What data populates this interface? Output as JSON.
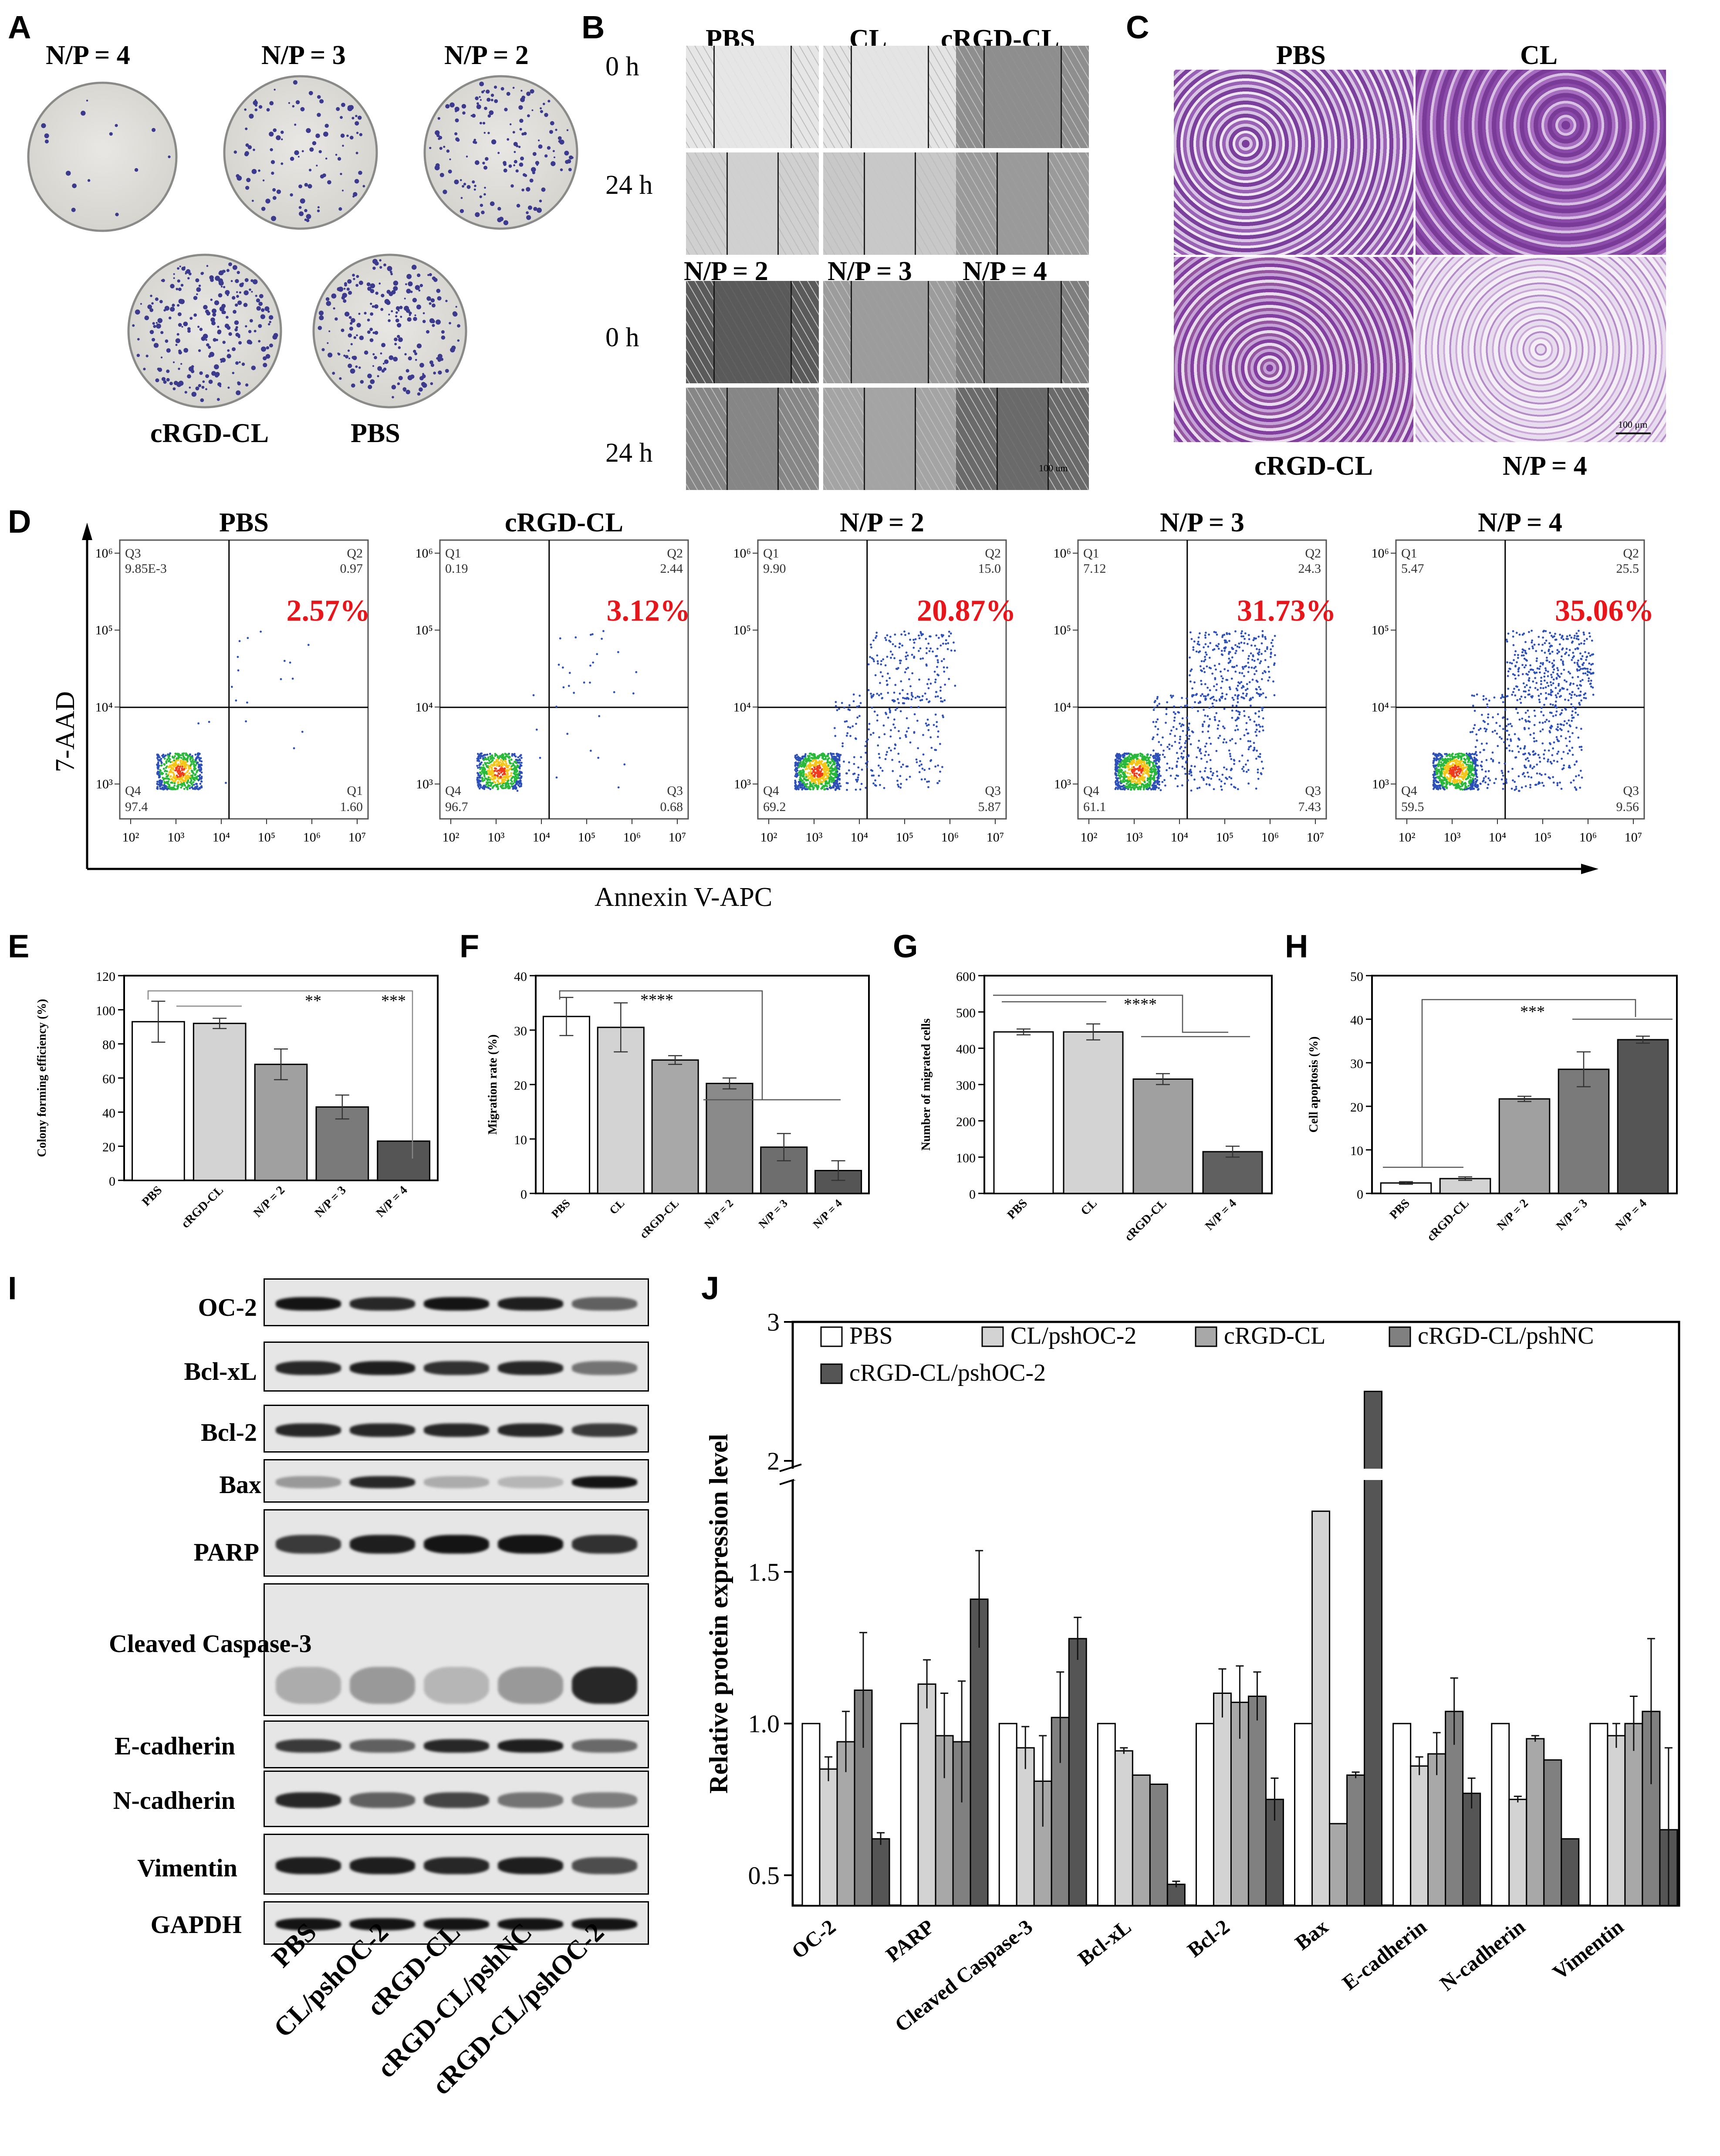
{
  "panel_labels": {
    "A": "A",
    "B": "B",
    "C": "C",
    "D": "D",
    "E": "E",
    "F": "F",
    "G": "G",
    "H": "H",
    "I": "I",
    "J": "J"
  },
  "panelA": {
    "top_labels": [
      "N/P = 4",
      "N/P = 3",
      "N/P = 2"
    ],
    "bottom_labels": [
      "cRGD-CL",
      "PBS"
    ]
  },
  "panelB": {
    "top_labels": [
      "PBS",
      "CL",
      "cRGD-CL"
    ],
    "bottom_labels": [
      "N/P = 2",
      "N/P = 3",
      "N/P = 4"
    ],
    "time_labels": [
      "0 h",
      "24 h",
      "0 h",
      "24 h"
    ],
    "scale": "100 um"
  },
  "panelC": {
    "top_labels": [
      "PBS",
      "CL"
    ],
    "bottom_labels": [
      "cRGD-CL",
      "N/P = 4"
    ],
    "scale": "100 μm"
  },
  "panelD": {
    "ylabel": "7-AAD",
    "xlabel": "Annexin V-APC",
    "xticks": [
      "10²",
      "10³",
      "10⁴",
      "10⁵",
      "10⁶",
      "10⁷"
    ],
    "yticks": [
      "10³",
      "10⁴",
      "10⁵",
      "10⁶"
    ],
    "plots": [
      {
        "title": "PBS",
        "tl": "Q3",
        "tl_v": "9.85E-3",
        "tr": "Q2",
        "tr_v": "0.97",
        "bl": "Q4",
        "bl_v": "97.4",
        "br": "Q1",
        "br_v": "1.60",
        "pct": "2.57%"
      },
      {
        "title": "cRGD-CL",
        "tl": "Q1",
        "tl_v": "0.19",
        "tr": "Q2",
        "tr_v": "2.44",
        "bl": "Q4",
        "bl_v": "96.7",
        "br": "Q3",
        "br_v": "0.68",
        "pct": "3.12%"
      },
      {
        "title": "N/P = 2",
        "tl": "Q1",
        "tl_v": "9.90",
        "tr": "Q2",
        "tr_v": "15.0",
        "bl": "Q4",
        "bl_v": "69.2",
        "br": "Q3",
        "br_v": "5.87",
        "pct": "20.87%"
      },
      {
        "title": "N/P = 3",
        "tl": "Q1",
        "tl_v": "7.12",
        "tr": "Q2",
        "tr_v": "24.3",
        "bl": "Q4",
        "bl_v": "61.1",
        "br": "Q3",
        "br_v": "7.43",
        "pct": "31.73%"
      },
      {
        "title": "N/P = 4",
        "tl": "Q1",
        "tl_v": "5.47",
        "tr": "Q2",
        "tr_v": "25.5",
        "bl": "Q4",
        "bl_v": "59.5",
        "br": "Q3",
        "br_v": "9.56",
        "pct": "35.06%"
      }
    ],
    "pct_color": "#e8161b"
  },
  "panelI": {
    "proteins": [
      "OC-2",
      "Bcl-xL",
      "Bcl-2",
      "Bax",
      "PARP",
      "Cleaved Caspase-3",
      "E-cadherin",
      "N-cadherin",
      "Vimentin",
      "GAPDH"
    ],
    "lanes": [
      "PBS",
      "CL/pshOC-2",
      "cRGD-CL",
      "cRGD-CL/pshNC",
      "cRGD-CL/pshOC-2"
    ]
  },
  "chart_data": [
    {
      "id": "E",
      "type": "bar",
      "ylabel": "Colony forming efficiency (%)",
      "categories": [
        "PBS",
        "cRGD-CL",
        "N/P = 2",
        "N/P = 3",
        "N/P = 4"
      ],
      "values": [
        93,
        92,
        68,
        43,
        23
      ],
      "errors": [
        12,
        3,
        9,
        7,
        0
      ],
      "ylim": [
        0,
        120
      ],
      "yticks": [
        0,
        20,
        40,
        60,
        80,
        100,
        120
      ],
      "colors": [
        "#ffffff",
        "#d3d3d3",
        "#a0a0a0",
        "#7a7a7a",
        "#555555"
      ],
      "sig": [
        "**",
        "***"
      ]
    },
    {
      "id": "F",
      "type": "bar",
      "ylabel": "Migration rate (%)",
      "categories": [
        "PBS",
        "CL",
        "cRGD-CL",
        "N/P = 2",
        "N/P = 3",
        "N/P = 4"
      ],
      "values": [
        32.5,
        30.5,
        24.5,
        20.2,
        8.5,
        4.2
      ],
      "errors": [
        3.5,
        4.5,
        0.8,
        1.0,
        2.5,
        1.8
      ],
      "ylim": [
        0,
        40
      ],
      "yticks": [
        0,
        10,
        20,
        30,
        40
      ],
      "colors": [
        "#ffffff",
        "#d3d3d3",
        "#a8a8a8",
        "#8a8a8a",
        "#6e6e6e",
        "#555555"
      ],
      "sig": [
        "****"
      ]
    },
    {
      "id": "G",
      "type": "bar",
      "ylabel": "Number of migrated cells",
      "categories": [
        "PBS",
        "CL",
        "cRGD-CL",
        "N/P = 4"
      ],
      "values": [
        445,
        445,
        315,
        115
      ],
      "errors": [
        8,
        22,
        15,
        15
      ],
      "ylim": [
        0,
        600
      ],
      "yticks": [
        0,
        100,
        200,
        300,
        400,
        500,
        600
      ],
      "colors": [
        "#ffffff",
        "#d3d3d3",
        "#a0a0a0",
        "#606060"
      ],
      "sig": [
        "****"
      ]
    },
    {
      "id": "H",
      "type": "bar",
      "ylabel": "Cell apoptosis (%)",
      "categories": [
        "PBS",
        "cRGD-CL",
        "N/P = 2",
        "N/P = 3",
        "N/P = 4"
      ],
      "values": [
        2.4,
        3.4,
        21.7,
        28.5,
        35.3
      ],
      "errors": [
        0.3,
        0.4,
        0.6,
        4.0,
        0.8
      ],
      "ylim": [
        0,
        50
      ],
      "yticks": [
        0,
        10,
        20,
        30,
        40,
        50
      ],
      "colors": [
        "#ffffff",
        "#d3d3d3",
        "#a0a0a0",
        "#7a7a7a",
        "#555555"
      ],
      "sig": [
        "***"
      ]
    },
    {
      "id": "J",
      "type": "bar",
      "ylabel": "Relative protein expression level",
      "categories": [
        "OC-2",
        "PARP",
        "Cleaved Caspase-3",
        "Bcl-xL",
        "Bcl-2",
        "Bax",
        "E-cadherin",
        "N-cadherin",
        "Vimentin"
      ],
      "series": [
        {
          "name": "PBS",
          "color": "#ffffff",
          "values": [
            1.0,
            1.0,
            1.0,
            1.0,
            1.0,
            1.0,
            1.0,
            1.0,
            1.0
          ],
          "errors": [
            0,
            0,
            0,
            0,
            0,
            0,
            0,
            0,
            0
          ]
        },
        {
          "name": "CL/pshOC-2",
          "color": "#d3d3d3",
          "values": [
            0.85,
            1.13,
            0.92,
            0.91,
            1.1,
            1.7,
            0.86,
            0.75,
            0.96
          ],
          "errors": [
            0.04,
            0.08,
            0.07,
            0.01,
            0.08,
            0,
            0.03,
            0.01,
            0.04
          ]
        },
        {
          "name": "cRGD-CL",
          "color": "#a8a8a8",
          "values": [
            0.94,
            0.96,
            0.81,
            0.83,
            1.07,
            0.67,
            0.9,
            0.95,
            1.0
          ],
          "errors": [
            0.1,
            0.14,
            0.15,
            0,
            0.12,
            0,
            0.07,
            0.01,
            0.09
          ]
        },
        {
          "name": "cRGD-CL/pshNC",
          "color": "#808080",
          "values": [
            1.11,
            0.94,
            1.02,
            0.8,
            1.09,
            0.83,
            1.04,
            0.88,
            1.04
          ],
          "errors": [
            0.19,
            0.2,
            0.15,
            0,
            0.08,
            0.01,
            0.11,
            0,
            0.24
          ]
        },
        {
          "name": "cRGD-CL/pshOC-2",
          "color": "#555555",
          "values": [
            0.62,
            1.41,
            1.28,
            0.47,
            0.75,
            2.5,
            0.77,
            0.62,
            0.65
          ],
          "errors": [
            0.02,
            0.16,
            0.07,
            0.01,
            0.07,
            0,
            0.05,
            0,
            0.27
          ]
        }
      ],
      "ylim": [
        0.4,
        3.0
      ],
      "yticks": [
        "0.5",
        "1.0",
        "1.5",
        "2",
        "3"
      ],
      "axis_break": [
        1.8,
        1.95
      ]
    }
  ]
}
